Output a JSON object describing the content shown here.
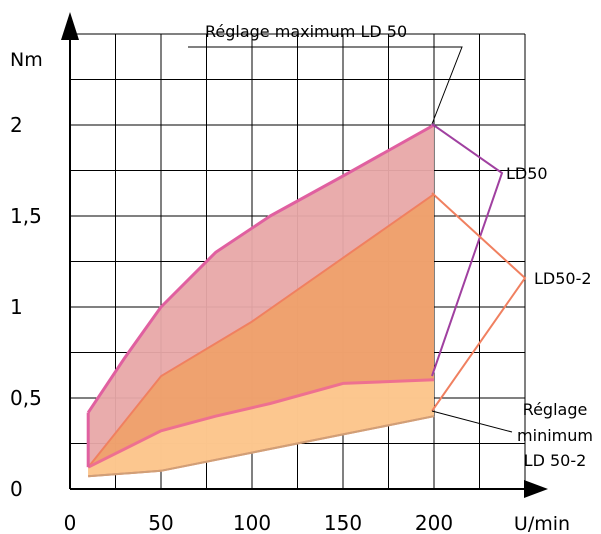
{
  "chart_data": {
    "type": "area",
    "title": "",
    "xlabel": "U/min",
    "ylabel": "Nm",
    "xlim": [
      0,
      250
    ],
    "ylim": [
      0,
      2.5
    ],
    "x_ticks": [
      {
        "value": 0,
        "label": "0"
      },
      {
        "value": 50,
        "label": "50"
      },
      {
        "value": 100,
        "label": "100"
      },
      {
        "value": 150,
        "label": "150"
      },
      {
        "value": 200,
        "label": "200"
      }
    ],
    "y_ticks": [
      {
        "value": 0,
        "label": "0"
      },
      {
        "value": 0.5,
        "label": "0,5"
      },
      {
        "value": 1,
        "label": "1"
      },
      {
        "value": 1.5,
        "label": "1,5"
      },
      {
        "value": 2,
        "label": "2"
      }
    ],
    "grid": true,
    "series": [
      {
        "name": "LD50",
        "color": "#e8a8a8",
        "line_color": "#e060a0",
        "upper": [
          [
            10,
            0.42
          ],
          [
            30,
            0.72
          ],
          [
            50,
            1.0
          ],
          [
            80,
            1.3
          ],
          [
            110,
            1.5
          ],
          [
            150,
            1.72
          ],
          [
            200,
            2.0
          ]
        ],
        "lower": [
          [
            10,
            0.12
          ],
          [
            50,
            0.32
          ],
          [
            80,
            0.4
          ],
          [
            110,
            0.47
          ],
          [
            150,
            0.58
          ],
          [
            200,
            0.6
          ]
        ]
      },
      {
        "name": "LD50-2",
        "color": "#f0a064",
        "line_color": "#f08060",
        "upper": [
          [
            10,
            0.12
          ],
          [
            50,
            0.62
          ],
          [
            100,
            0.92
          ],
          [
            150,
            1.27
          ],
          [
            200,
            1.62
          ]
        ],
        "lower": [
          [
            10,
            0.07
          ],
          [
            50,
            0.1
          ],
          [
            100,
            0.2
          ],
          [
            150,
            0.3
          ],
          [
            200,
            0.4
          ]
        ]
      },
      {
        "name": "",
        "color": "#fcc890",
        "line_color": "#d0a078",
        "upper": [
          [
            10,
            0.12
          ],
          [
            50,
            0.32
          ],
          [
            80,
            0.4
          ],
          [
            110,
            0.47
          ],
          [
            150,
            0.58
          ],
          [
            200,
            0.6
          ]
        ],
        "lower": [
          [
            10,
            0.07
          ],
          [
            50,
            0.1
          ],
          [
            100,
            0.2
          ],
          [
            150,
            0.3
          ],
          [
            200,
            0.4
          ]
        ]
      }
    ],
    "annotations": {
      "max_setting": "Réglage maximum LD 50",
      "ld50": "LD50",
      "ld50_2": "LD50-2",
      "min_setting_1": "Réglage",
      "min_setting_2": "minimum",
      "min_setting_3": "LD 50-2"
    }
  }
}
